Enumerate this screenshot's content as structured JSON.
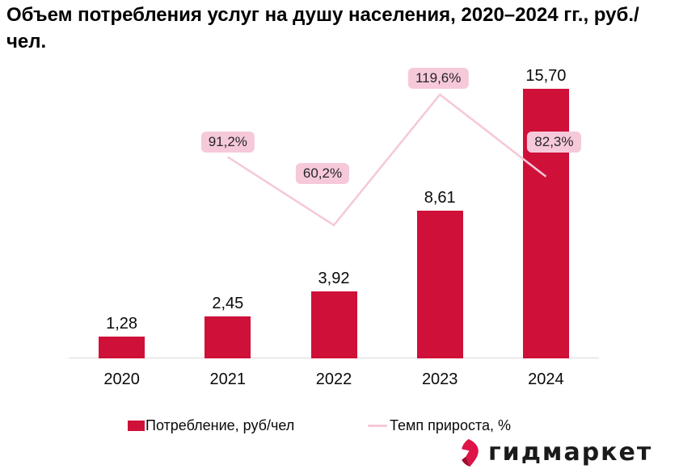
{
  "title": "Объем потребления услуг на душу населения, 2020–2024 гг., руб./чел.",
  "chart_data": {
    "type": "combo",
    "categories": [
      "2020",
      "2021",
      "2022",
      "2023",
      "2024"
    ],
    "series": [
      {
        "name": "Потребление, руб/чел",
        "type": "bar",
        "values": [
          1.28,
          2.45,
          3.92,
          8.61,
          15.7
        ],
        "labels": [
          "1,28",
          "2,45",
          "3,92",
          "8,61",
          "15,70"
        ],
        "color": "#CF1039"
      },
      {
        "name": "Темп прироста, %",
        "type": "line",
        "values": [
          null,
          91.2,
          60.2,
          119.6,
          82.3
        ],
        "labels": [
          null,
          "91,2%",
          "60,2%",
          "119,6%",
          "82,3%"
        ],
        "color": "#F5C8D7",
        "label_bg": "#F6C9DA"
      }
    ],
    "xlabel": "",
    "ylabel": "",
    "primary_ylim": [
      0,
      16
    ],
    "secondary_ylim": [
      0,
      130
    ],
    "grid": false,
    "legend_position": "bottom"
  },
  "logo": {
    "text": "гидмаркет"
  }
}
